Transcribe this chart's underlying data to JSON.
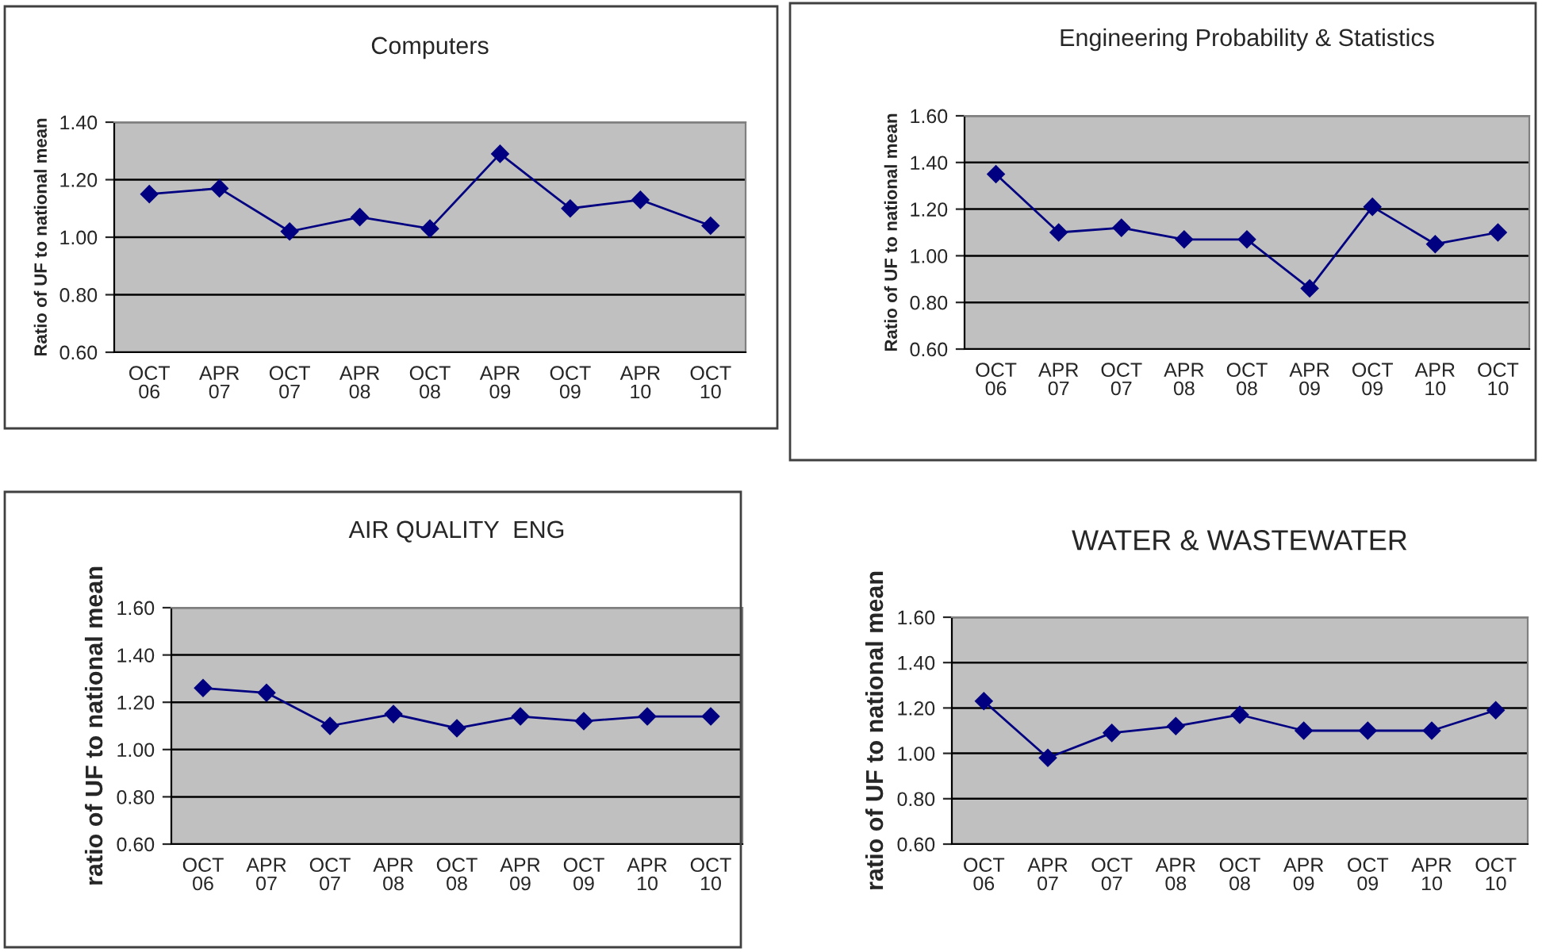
{
  "chart_data": [
    {
      "type": "line",
      "title": "Computers",
      "ylabel": "Ratio of UF to national mean",
      "categories": [
        "OCT\n06",
        "APR\n07",
        "OCT\n07",
        "APR\n08",
        "OCT\n08",
        "APR\n09",
        "OCT\n09",
        "APR\n10",
        "OCT\n10"
      ],
      "series": [
        {
          "color": "#000080",
          "values": [
            1.15,
            1.17,
            1.02,
            1.07,
            1.03,
            1.29,
            1.1,
            1.13,
            1.04
          ]
        }
      ],
      "ylim": [
        0.6,
        1.4
      ],
      "yticks": [
        {
          "value": 0.6,
          "label": "0.60"
        },
        {
          "value": 0.8,
          "label": "0.80"
        },
        {
          "value": 1.0,
          "label": "1.00"
        },
        {
          "value": 1.2,
          "label": "1.20"
        },
        {
          "value": 1.4,
          "label": "1.40"
        }
      ],
      "grid": "y",
      "marker": "diamond",
      "line_style": "solid"
    },
    {
      "type": "line",
      "title": "Engineering Probability & Statistics",
      "ylabel": "Ratio of UF to national mean",
      "categories": [
        "OCT\n06",
        "APR\n07",
        "OCT\n07",
        "APR\n08",
        "OCT\n08",
        "APR\n09",
        "OCT\n09",
        "APR\n10",
        "OCT\n10"
      ],
      "series": [
        {
          "color": "#000080",
          "values": [
            1.35,
            1.1,
            1.12,
            1.07,
            1.07,
            0.86,
            1.21,
            1.05,
            1.1
          ]
        }
      ],
      "ylim": [
        0.6,
        1.6
      ],
      "yticks": [
        {
          "value": 0.6,
          "label": "0.60"
        },
        {
          "value": 0.8,
          "label": "0.80"
        },
        {
          "value": 1.0,
          "label": "1.00"
        },
        {
          "value": 1.2,
          "label": "1.20"
        },
        {
          "value": 1.4,
          "label": "1.40"
        },
        {
          "value": 1.6,
          "label": "1.60"
        }
      ],
      "grid": "y",
      "marker": "diamond",
      "line_style": "solid"
    },
    {
      "type": "line",
      "title": "AIR QUALITY  ENG",
      "ylabel": "ratio of UF to national mean",
      "categories": [
        "OCT\n06",
        "APR\n07",
        "OCT\n07",
        "APR\n08",
        "OCT\n08",
        "APR\n09",
        "OCT\n09",
        "APR\n10",
        "OCT\n10"
      ],
      "series": [
        {
          "color": "#000080",
          "values": [
            1.26,
            1.24,
            1.1,
            1.15,
            1.09,
            1.14,
            1.12,
            1.14,
            1.14
          ]
        }
      ],
      "ylim": [
        0.6,
        1.6
      ],
      "yticks": [
        {
          "value": 0.6,
          "label": "0.60"
        },
        {
          "value": 0.8,
          "label": "0.80"
        },
        {
          "value": 1.0,
          "label": "1.00"
        },
        {
          "value": 1.2,
          "label": "1.20"
        },
        {
          "value": 1.4,
          "label": "1.40"
        },
        {
          "value": 1.6,
          "label": "1.60"
        }
      ],
      "grid": "y",
      "marker": "diamond",
      "line_style": "solid"
    },
    {
      "type": "line",
      "title": "WATER & WASTEWATER",
      "ylabel": "ratio of UF to national mean",
      "categories": [
        "OCT\n06",
        "APR\n07",
        "OCT\n07",
        "APR\n08",
        "OCT\n08",
        "APR\n09",
        "OCT\n09",
        "APR\n10",
        "OCT\n10"
      ],
      "series": [
        {
          "color": "#000080",
          "values": [
            1.23,
            0.98,
            1.09,
            1.12,
            1.17,
            1.1,
            1.1,
            1.1,
            1.19
          ]
        }
      ],
      "ylim": [
        0.6,
        1.6
      ],
      "yticks": [
        {
          "value": 0.6,
          "label": "0.60"
        },
        {
          "value": 0.8,
          "label": "0.80"
        },
        {
          "value": 1.0,
          "label": "1.00"
        },
        {
          "value": 1.2,
          "label": "1.20"
        },
        {
          "value": 1.4,
          "label": "1.40"
        },
        {
          "value": 1.6,
          "label": "1.60"
        }
      ],
      "grid": "y",
      "marker": "diamond",
      "line_style": "solid"
    }
  ]
}
